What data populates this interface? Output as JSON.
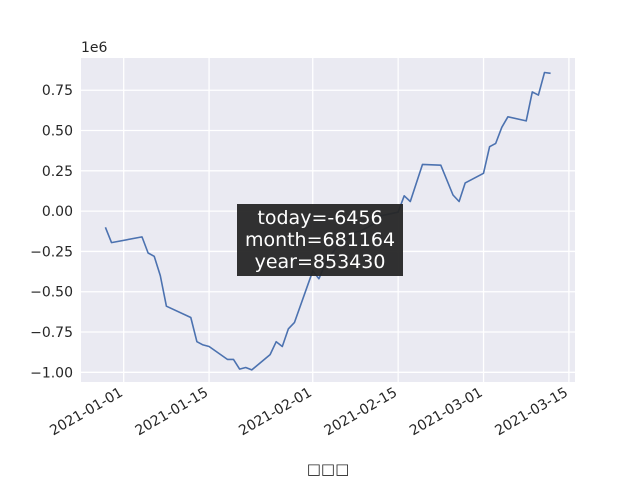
{
  "chart_data": {
    "type": "line",
    "xlabel": "□□□",
    "ylabel": "",
    "y_offset_label": "1e6",
    "grid": true,
    "xlim": [
      "2020-12-25",
      "2021-03-16"
    ],
    "ylim": [
      -1060000,
      950000
    ],
    "x_ticks": [
      "2021-01-01",
      "2021-01-15",
      "2021-02-01",
      "2021-02-15",
      "2021-03-01",
      "2021-03-15"
    ],
    "y_ticks": [
      -1.0,
      -0.75,
      -0.5,
      -0.25,
      0.0,
      0.25,
      0.5,
      0.75
    ],
    "y_tick_labels": [
      "−1.00",
      "−0.75",
      "−0.50",
      "−0.25",
      "0.00",
      "0.25",
      "0.50",
      "0.75"
    ],
    "series": [
      {
        "color": "#4c72b0",
        "points": [
          [
            "2020-12-29",
            -100000
          ],
          [
            "2020-12-30",
            -195000
          ],
          [
            "2021-01-04",
            -160000
          ],
          [
            "2021-01-05",
            -260000
          ],
          [
            "2021-01-06",
            -280000
          ],
          [
            "2021-01-07",
            -400000
          ],
          [
            "2021-01-08",
            -590000
          ],
          [
            "2021-01-12",
            -660000
          ],
          [
            "2021-01-13",
            -810000
          ],
          [
            "2021-01-14",
            -830000
          ],
          [
            "2021-01-15",
            -840000
          ],
          [
            "2021-01-18",
            -920000
          ],
          [
            "2021-01-19",
            -920000
          ],
          [
            "2021-01-20",
            -980000
          ],
          [
            "2021-01-21",
            -970000
          ],
          [
            "2021-01-22",
            -985000
          ],
          [
            "2021-01-25",
            -890000
          ],
          [
            "2021-01-26",
            -810000
          ],
          [
            "2021-01-27",
            -840000
          ],
          [
            "2021-01-28",
            -730000
          ],
          [
            "2021-01-29",
            -690000
          ],
          [
            "2021-02-01",
            -370000
          ],
          [
            "2021-02-02",
            -420000
          ],
          [
            "2021-02-03",
            -330000
          ],
          [
            "2021-02-04",
            -270000
          ],
          [
            "2021-02-05",
            -220000
          ],
          [
            "2021-02-08",
            -130000
          ],
          [
            "2021-02-09",
            -120000
          ],
          [
            "2021-02-10",
            -100000
          ],
          [
            "2021-02-11",
            -80000
          ],
          [
            "2021-02-12",
            -30000
          ],
          [
            "2021-02-15",
            -6456
          ],
          [
            "2021-02-16",
            95000
          ],
          [
            "2021-02-17",
            60000
          ],
          [
            "2021-02-19",
            290000
          ],
          [
            "2021-02-22",
            285000
          ],
          [
            "2021-02-24",
            100000
          ],
          [
            "2021-02-25",
            60000
          ],
          [
            "2021-02-26",
            175000
          ],
          [
            "2021-03-01",
            235000
          ],
          [
            "2021-03-02",
            400000
          ],
          [
            "2021-03-03",
            420000
          ],
          [
            "2021-03-04",
            520000
          ],
          [
            "2021-03-05",
            585000
          ],
          [
            "2021-03-08",
            560000
          ],
          [
            "2021-03-09",
            740000
          ],
          [
            "2021-03-10",
            720000
          ],
          [
            "2021-03-11",
            860000
          ],
          [
            "2021-03-12",
            855000
          ]
        ]
      }
    ],
    "annotation": {
      "lines": [
        "today=-6456",
        "month=681164",
        "year=853430"
      ]
    }
  }
}
